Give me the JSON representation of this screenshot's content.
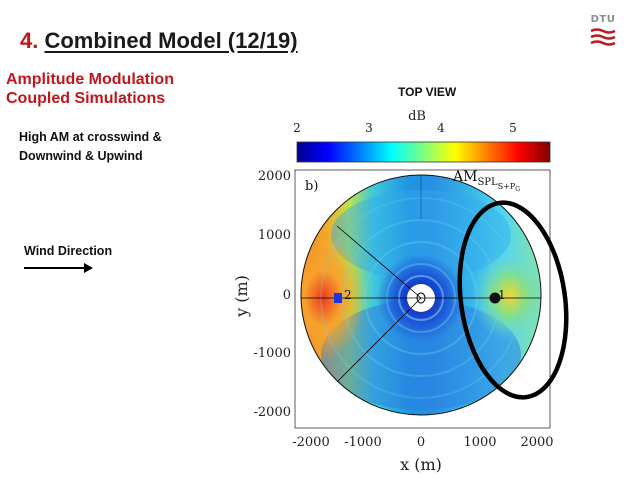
{
  "slide": {
    "title_number": "4.",
    "title_text": "Combined Model (12/19)",
    "subtitle_line1": "Amplitude Modulation",
    "subtitle_line2": "Coupled Simulations",
    "note_line1": "High AM at crosswind &",
    "note_line2": "Downwind & Upwind",
    "wind_label": "Wind Direction",
    "top_view_label": "TOP VIEW",
    "logo_text": "DTU"
  },
  "figure": {
    "colorbar_label": "dB",
    "colorbar_ticks": [
      "2",
      "3",
      "4",
      "5"
    ],
    "panel_label": "b)",
    "annotation_main": "AM",
    "annotation_sub": "SPL",
    "annotation_subsub": "S+P",
    "annotation_subsubsub": "G",
    "x_label": "x (m)",
    "y_label": "y (m)",
    "x_ticks": [
      "-2000",
      "-1000",
      "0",
      "1000",
      "2000"
    ],
    "y_ticks": [
      "2000",
      "1000",
      "0",
      "-1000",
      "-2000"
    ],
    "marker_1": "1",
    "marker_2": "2"
  },
  "colors": {
    "brand_red": "#c0161c",
    "highlight_ellipse": "#000000"
  }
}
